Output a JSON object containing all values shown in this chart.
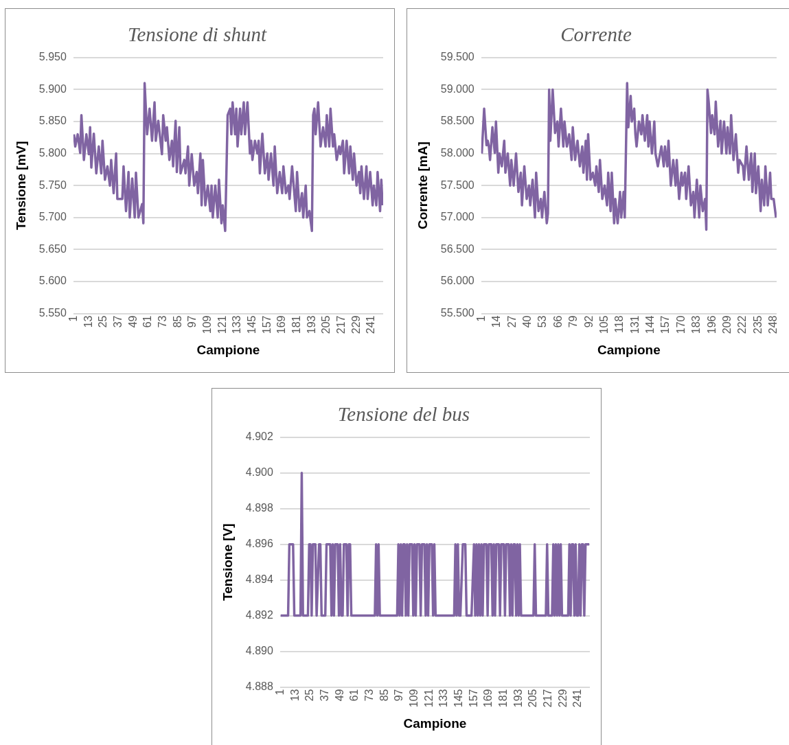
{
  "chart_data": [
    {
      "type": "line",
      "title": "Tensione di shunt",
      "xlabel": "Campione",
      "ylabel": "Tensione [mV]",
      "color": "#8064a2",
      "grid": "y",
      "xlim": [
        0.5,
        250.5
      ],
      "xticks": [
        1,
        13,
        25,
        37,
        49,
        61,
        73,
        85,
        97,
        109,
        121,
        133,
        145,
        157,
        169,
        181,
        193,
        205,
        217,
        229,
        241
      ],
      "ylim": [
        5.55,
        5.95
      ],
      "yticks": [
        {
          "value": 5.55,
          "label": "5.550"
        },
        {
          "value": 5.6,
          "label": "5.600"
        },
        {
          "value": 5.65,
          "label": "5.650"
        },
        {
          "value": 5.7,
          "label": "5.700"
        },
        {
          "value": 5.75,
          "label": "5.750"
        },
        {
          "value": 5.8,
          "label": "5.800"
        },
        {
          "value": 5.85,
          "label": "5.850"
        },
        {
          "value": 5.9,
          "label": "5.900"
        },
        {
          "value": 5.95,
          "label": "5.950"
        }
      ],
      "x": [
        1,
        2,
        4,
        6,
        7,
        9,
        11,
        13,
        14,
        15,
        17,
        19,
        21,
        23,
        24,
        26,
        28,
        30,
        31,
        33,
        35,
        36,
        40,
        41,
        43,
        45,
        46,
        48,
        50,
        51,
        53,
        56,
        57,
        58,
        60,
        62,
        64,
        66,
        67,
        69,
        72,
        73,
        75,
        76,
        78,
        80,
        81,
        83,
        84,
        86,
        87,
        90,
        91,
        93,
        94,
        96,
        98,
        100,
        101,
        103,
        104,
        105,
        107,
        109,
        111,
        112,
        113,
        115,
        117,
        118,
        120,
        121,
        123,
        125,
        127,
        128,
        129,
        131,
        132,
        133,
        135,
        136,
        138,
        139,
        141,
        143,
        144,
        145,
        147,
        149,
        150,
        151,
        153,
        155,
        157,
        158,
        160,
        162,
        163,
        165,
        167,
        169,
        170,
        172,
        174,
        175,
        177,
        180,
        181,
        183,
        185,
        186,
        188,
        189,
        191,
        193,
        194,
        195,
        196,
        198,
        200,
        202,
        204,
        205,
        207,
        208,
        210,
        211,
        213,
        215,
        216,
        218,
        219,
        221,
        223,
        224,
        226,
        227,
        229,
        231,
        232,
        233,
        235,
        237,
        238,
        240,
        242,
        243,
        245,
        246,
        248,
        249,
        250
      ],
      "values": [
        5.83,
        5.811,
        5.83,
        5.801,
        5.86,
        5.79,
        5.83,
        5.799,
        5.841,
        5.778,
        5.831,
        5.769,
        5.811,
        5.769,
        5.82,
        5.759,
        5.78,
        5.75,
        5.79,
        5.738,
        5.8,
        5.729,
        5.729,
        5.78,
        5.71,
        5.771,
        5.7,
        5.761,
        5.7,
        5.77,
        5.7,
        5.721,
        5.691,
        5.91,
        5.83,
        5.87,
        5.82,
        5.88,
        5.82,
        5.851,
        5.799,
        5.86,
        5.82,
        5.841,
        5.79,
        5.82,
        5.78,
        5.851,
        5.771,
        5.841,
        5.769,
        5.79,
        5.769,
        5.811,
        5.75,
        5.799,
        5.75,
        5.771,
        5.738,
        5.8,
        5.719,
        5.79,
        5.719,
        5.75,
        5.71,
        5.75,
        5.7,
        5.75,
        5.7,
        5.759,
        5.691,
        5.719,
        5.679,
        5.86,
        5.87,
        5.83,
        5.88,
        5.83,
        5.87,
        5.811,
        5.87,
        5.83,
        5.88,
        5.83,
        5.88,
        5.8,
        5.82,
        5.79,
        5.82,
        5.8,
        5.82,
        5.769,
        5.831,
        5.769,
        5.8,
        5.759,
        5.8,
        5.75,
        5.811,
        5.738,
        5.771,
        5.738,
        5.78,
        5.738,
        5.75,
        5.729,
        5.78,
        5.71,
        5.771,
        5.71,
        5.738,
        5.7,
        5.75,
        5.7,
        5.71,
        5.679,
        5.86,
        5.87,
        5.83,
        5.88,
        5.811,
        5.841,
        5.811,
        5.86,
        5.811,
        5.87,
        5.811,
        5.83,
        5.79,
        5.811,
        5.799,
        5.82,
        5.769,
        5.82,
        5.769,
        5.811,
        5.759,
        5.8,
        5.75,
        5.771,
        5.738,
        5.78,
        5.729,
        5.78,
        5.729,
        5.771,
        5.719,
        5.75,
        5.719,
        5.771,
        5.71,
        5.759,
        5.719
      ]
    },
    {
      "type": "line",
      "title": "Corrente",
      "xlabel": "Campione",
      "ylabel": "Corrente [mA]",
      "color": "#8064a2",
      "grid": "y",
      "xlim": [
        0.5,
        250.5
      ],
      "xticks": [
        1,
        14,
        27,
        40,
        53,
        66,
        79,
        92,
        105,
        118,
        131,
        144,
        157,
        170,
        183,
        196,
        209,
        222,
        235,
        248
      ],
      "ylim": [
        55.5,
        59.5
      ],
      "yticks": [
        {
          "value": 55.5,
          "label": "55.500"
        },
        {
          "value": 56,
          "label": "56.000"
        },
        {
          "value": 56.5,
          "label": "56.500"
        },
        {
          "value": 57,
          "label": "57.000"
        },
        {
          "value": 57.5,
          "label": "57.500"
        },
        {
          "value": 58,
          "label": "58.000"
        },
        {
          "value": 58.5,
          "label": "58.500"
        },
        {
          "value": 59,
          "label": "59.000"
        },
        {
          "value": 59.5,
          "label": "59.500"
        }
      ],
      "x": [
        1,
        3,
        5,
        6,
        7,
        8,
        10,
        12,
        13,
        15,
        16,
        18,
        20,
        21,
        23,
        25,
        26,
        28,
        30,
        32,
        34,
        35,
        37,
        39,
        41,
        42,
        44,
        46,
        47,
        49,
        51,
        52,
        54,
        56,
        57,
        58,
        59,
        61,
        63,
        65,
        66,
        68,
        70,
        71,
        73,
        75,
        77,
        78,
        80,
        82,
        84,
        86,
        87,
        89,
        90,
        91,
        93,
        95,
        97,
        98,
        100,
        101,
        103,
        105,
        107,
        108,
        110,
        111,
        113,
        114,
        116,
        118,
        119,
        121,
        122,
        124,
        125,
        127,
        128,
        130,
        131,
        132,
        134,
        136,
        137,
        139,
        141,
        142,
        143,
        145,
        147,
        148,
        150,
        153,
        155,
        156,
        158,
        159,
        161,
        163,
        165,
        166,
        168,
        170,
        171,
        173,
        174,
        176,
        178,
        180,
        181,
        183,
        185,
        186,
        188,
        190,
        191,
        192,
        193,
        195,
        196,
        198,
        199,
        201,
        203,
        204,
        206,
        208,
        209,
        211,
        212,
        214,
        216,
        218,
        219,
        222,
        223,
        225,
        227,
        229,
        230,
        232,
        233,
        235,
        237,
        238,
        240,
        241,
        243,
        245,
        246,
        248,
        250
      ],
      "values": [
        58.0,
        58.7,
        58.13,
        58.2,
        58.11,
        57.9,
        58.41,
        58.01,
        58.5,
        57.7,
        58.0,
        57.8,
        58.2,
        57.7,
        58.0,
        57.5,
        57.9,
        57.5,
        58.0,
        57.4,
        57.7,
        57.19,
        57.8,
        57.29,
        57.5,
        57.19,
        57.59,
        57.0,
        57.7,
        57.1,
        57.29,
        57.0,
        57.4,
        56.91,
        57.06,
        59.0,
        58.2,
        59.0,
        58.32,
        58.5,
        58.11,
        58.7,
        58.11,
        58.5,
        58.11,
        58.3,
        57.9,
        58.41,
        57.9,
        58.2,
        57.8,
        58.11,
        57.7,
        58.2,
        57.59,
        58.3,
        57.59,
        57.7,
        57.5,
        57.8,
        57.4,
        57.9,
        57.29,
        57.5,
        57.19,
        57.7,
        57.1,
        57.7,
        56.91,
        57.29,
        56.91,
        57.4,
        57.0,
        57.4,
        57.0,
        59.1,
        58.41,
        58.9,
        58.5,
        58.7,
        58.3,
        58.11,
        58.5,
        58.3,
        58.6,
        58.2,
        58.6,
        58.11,
        58.5,
        58.0,
        58.5,
        58.0,
        57.8,
        58.11,
        57.8,
        58.11,
        57.8,
        58.2,
        57.5,
        57.9,
        57.5,
        57.9,
        57.29,
        57.7,
        57.5,
        57.7,
        57.29,
        57.8,
        57.19,
        57.4,
        57.0,
        57.59,
        57.0,
        57.5,
        57.1,
        57.29,
        56.81,
        59.0,
        58.81,
        58.32,
        58.6,
        58.3,
        58.81,
        58.11,
        58.51,
        58.0,
        58.5,
        58.0,
        58.41,
        58.0,
        58.6,
        57.9,
        58.3,
        57.7,
        57.9,
        57.8,
        57.59,
        58.11,
        57.59,
        58.0,
        57.4,
        58.0,
        57.38,
        57.8,
        57.1,
        57.59,
        57.19,
        57.8,
        57.19,
        57.7,
        57.29,
        57.29,
        57.0
      ]
    },
    {
      "type": "line",
      "title": "Tensione del bus",
      "xlabel": "Campione",
      "ylabel": "Tensione [V]",
      "color": "#8064a2",
      "grid": "y",
      "xlim": [
        0.5,
        250.5
      ],
      "xticks": [
        1,
        13,
        25,
        37,
        49,
        61,
        73,
        85,
        97,
        109,
        121,
        133,
        145,
        157,
        169,
        181,
        193,
        205,
        217,
        229,
        241
      ],
      "ylim": [
        4.888,
        4.902
      ],
      "yticks": [
        {
          "value": 4.888,
          "label": "4.888"
        },
        {
          "value": 4.89,
          "label": "4.890"
        },
        {
          "value": 4.892,
          "label": "4.892"
        },
        {
          "value": 4.894,
          "label": "4.894"
        },
        {
          "value": 4.896,
          "label": "4.896"
        },
        {
          "value": 4.898,
          "label": "4.898"
        },
        {
          "value": 4.9,
          "label": "4.900"
        },
        {
          "value": 4.902,
          "label": "4.902"
        }
      ],
      "x": [
        1,
        7,
        8,
        11,
        12,
        17,
        18,
        19,
        23,
        24,
        25,
        26,
        27,
        29,
        30,
        32,
        33,
        34,
        37,
        38,
        41,
        42,
        43,
        44,
        45,
        47,
        48,
        49,
        50,
        51,
        52,
        54,
        55,
        56,
        57,
        58,
        77,
        78,
        79,
        80,
        81,
        95,
        96,
        97,
        98,
        99,
        100,
        101,
        102,
        103,
        104,
        105,
        107,
        108,
        109,
        110,
        111,
        113,
        114,
        115,
        117,
        118,
        119,
        120,
        121,
        123,
        124,
        125,
        126,
        141,
        142,
        143,
        144,
        145,
        146,
        148,
        150,
        151,
        155,
        157,
        158,
        159,
        160,
        161,
        162,
        163,
        164,
        165,
        167,
        168,
        169,
        171,
        172,
        173,
        174,
        175,
        177,
        178,
        179,
        181,
        182,
        183,
        185,
        186,
        187,
        188,
        189,
        190,
        191,
        192,
        193,
        194,
        195,
        205,
        206,
        207,
        215,
        216,
        217,
        220,
        221,
        222,
        223,
        224,
        225,
        226,
        227,
        228,
        233,
        234,
        235,
        236,
        237,
        238,
        239,
        240,
        241,
        242,
        243,
        244,
        245,
        246,
        247,
        250
      ],
      "values": [
        4.892,
        4.892,
        4.896,
        4.896,
        4.892,
        4.892,
        4.9,
        4.892,
        4.892,
        4.896,
        4.896,
        4.892,
        4.896,
        4.896,
        4.892,
        4.896,
        4.896,
        4.892,
        4.892,
        4.896,
        4.896,
        4.892,
        4.896,
        4.892,
        4.896,
        4.896,
        4.892,
        4.896,
        4.892,
        4.892,
        4.896,
        4.896,
        4.892,
        4.896,
        4.896,
        4.892,
        4.892,
        4.896,
        4.892,
        4.896,
        4.892,
        4.892,
        4.896,
        4.892,
        4.896,
        4.892,
        4.896,
        4.896,
        4.892,
        4.896,
        4.892,
        4.896,
        4.896,
        4.892,
        4.896,
        4.892,
        4.896,
        4.896,
        4.892,
        4.896,
        4.896,
        4.892,
        4.896,
        4.892,
        4.896,
        4.896,
        4.892,
        4.896,
        4.892,
        4.892,
        4.896,
        4.892,
        4.896,
        4.892,
        4.892,
        4.896,
        4.896,
        4.892,
        4.892,
        4.896,
        4.892,
        4.896,
        4.892,
        4.896,
        4.892,
        4.896,
        4.892,
        4.896,
        4.896,
        4.892,
        4.896,
        4.896,
        4.892,
        4.896,
        4.892,
        4.896,
        4.896,
        4.892,
        4.896,
        4.896,
        4.892,
        4.896,
        4.896,
        4.892,
        4.896,
        4.892,
        4.896,
        4.896,
        4.892,
        4.896,
        4.892,
        4.896,
        4.892,
        4.892,
        4.896,
        4.892,
        4.892,
        4.896,
        4.892,
        4.892,
        4.896,
        4.892,
        4.896,
        4.892,
        4.896,
        4.892,
        4.896,
        4.892,
        4.892,
        4.896,
        4.892,
        4.896,
        4.896,
        4.892,
        4.896,
        4.892,
        4.892,
        4.896,
        4.892,
        4.896,
        4.896,
        4.892,
        4.896,
        4.896
      ]
    }
  ]
}
